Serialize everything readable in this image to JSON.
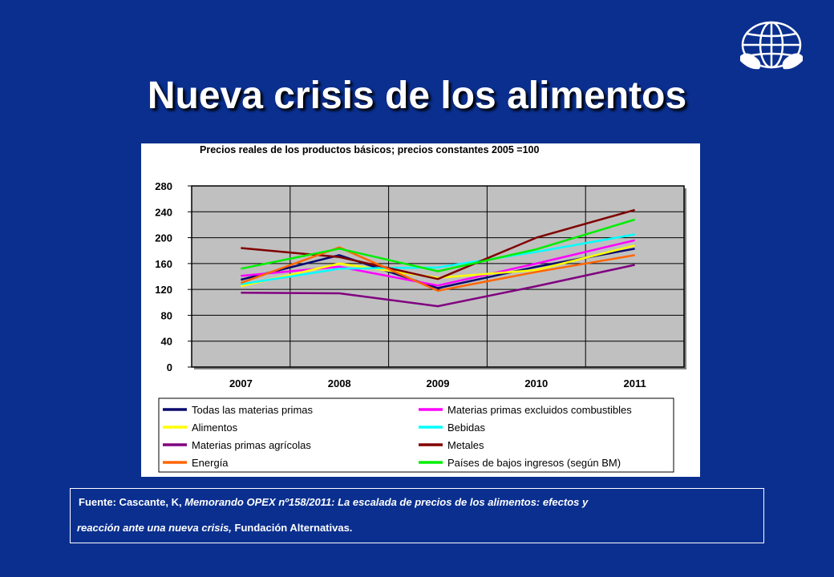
{
  "slide": {
    "title": "Nueva crisis de los alimentos",
    "logo_icon": "globe-hands-icon"
  },
  "source": {
    "prefix": "Fuente: Cascante, K, ",
    "italic": "Memorando OPEX nº158/2011: La escalada de precios de los alimentos: efectos y",
    "italic2": "reacción ante una nueva crisis,",
    "suffix": " Fundación Alternativas."
  },
  "colors": {
    "background": "#0a2f8f",
    "plot_background": "#c0c0c0"
  },
  "chart_data": {
    "type": "line",
    "title": "Precios reales de los productos básicos; precios constantes 2005 =100",
    "x": [
      "2007",
      "2008",
      "2009",
      "2010",
      "2011"
    ],
    "ylim": [
      0,
      280
    ],
    "yticks": [
      0,
      40,
      80,
      120,
      160,
      200,
      240,
      280
    ],
    "grid": true,
    "legend_position": "bottom",
    "series": [
      {
        "name": "Todas las materias primas",
        "color": "#0a0a6e",
        "values": [
          135,
          173,
          122,
          155,
          183
        ]
      },
      {
        "name": "Materias primas excluidos combustibles",
        "color": "#ff00ff",
        "values": [
          141,
          155,
          126,
          160,
          196
        ]
      },
      {
        "name": "Alimentos",
        "color": "#ffff00",
        "values": [
          125,
          160,
          138,
          150,
          188
        ]
      },
      {
        "name": "Bebidas",
        "color": "#00ffff",
        "values": [
          128,
          152,
          154,
          178,
          205
        ]
      },
      {
        "name": "Materias primas agrícolas",
        "color": "#800080",
        "values": [
          115,
          114,
          94,
          125,
          158
        ]
      },
      {
        "name": "Metales",
        "color": "#800000",
        "values": [
          184,
          170,
          136,
          200,
          243
        ]
      },
      {
        "name": "Energía",
        "color": "#ff6600",
        "values": [
          130,
          185,
          118,
          147,
          173
        ]
      },
      {
        "name": "Países de bajos ingresos (según BM)",
        "color": "#00ee00",
        "values": [
          152,
          183,
          148,
          182,
          228
        ]
      }
    ]
  }
}
